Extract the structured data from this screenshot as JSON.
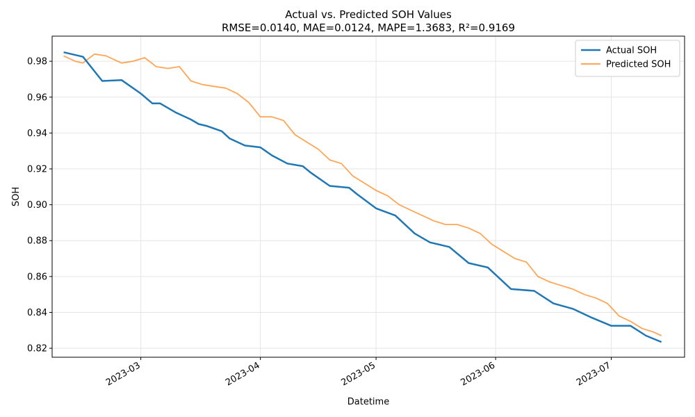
{
  "chart_data": {
    "type": "line",
    "title": "Actual vs. Predicted SOH Values",
    "subtitle": "RMSE=0.0140, MAE=0.0124, MAPE=1.3683, R²=0.9169",
    "xlabel": "Datetime",
    "ylabel": "SOH",
    "x_tick_labels": [
      "2023-03",
      "2023-04",
      "2023-05",
      "2023-06",
      "2023-07"
    ],
    "x_ticks": [
      "2023-03-01",
      "2023-04-01",
      "2023-05-01",
      "2023-06-01",
      "2023-07-01"
    ],
    "y_ticks": [
      0.82,
      0.84,
      0.86,
      0.88,
      0.9,
      0.92,
      0.94,
      0.96,
      0.98
    ],
    "xlim": [
      "2023-02-06",
      "2023-07-20"
    ],
    "ylim": [
      0.815,
      0.994
    ],
    "grid": true,
    "legend_position": "top-right",
    "series": [
      {
        "name": "Actual SOH",
        "color": "#1f77b4",
        "x": [
          "2023-02-09",
          "2023-02-14",
          "2023-02-19",
          "2023-02-24",
          "2023-03-01",
          "2023-03-04",
          "2023-03-06",
          "2023-03-10",
          "2023-03-14",
          "2023-03-16",
          "2023-03-18",
          "2023-03-22",
          "2023-03-24",
          "2023-03-28",
          "2023-04-01",
          "2023-04-04",
          "2023-04-08",
          "2023-04-12",
          "2023-04-14",
          "2023-04-19",
          "2023-04-24",
          "2023-04-26",
          "2023-05-01",
          "2023-05-06",
          "2023-05-11",
          "2023-05-15",
          "2023-05-20",
          "2023-05-25",
          "2023-05-30",
          "2023-06-05",
          "2023-06-11",
          "2023-06-16",
          "2023-06-21",
          "2023-06-26",
          "2023-07-01",
          "2023-07-06",
          "2023-07-10",
          "2023-07-14"
        ],
        "values": [
          0.985,
          0.9825,
          0.969,
          0.9695,
          0.962,
          0.9565,
          0.9565,
          0.9515,
          0.9475,
          0.945,
          0.944,
          0.941,
          0.937,
          0.933,
          0.932,
          0.9275,
          0.923,
          0.9215,
          0.918,
          0.9105,
          0.9095,
          0.906,
          0.898,
          0.894,
          0.884,
          0.879,
          0.8765,
          0.8675,
          0.865,
          0.853,
          0.852,
          0.845,
          0.842,
          0.837,
          0.8325,
          0.8325,
          0.827,
          0.8235
        ]
      },
      {
        "name": "Predicted SOH",
        "color": "#ff7f0e",
        "x": [
          "2023-02-09",
          "2023-02-12",
          "2023-02-14",
          "2023-02-17",
          "2023-02-20",
          "2023-02-24",
          "2023-02-27",
          "2023-03-02",
          "2023-03-05",
          "2023-03-08",
          "2023-03-11",
          "2023-03-14",
          "2023-03-17",
          "2023-03-20",
          "2023-03-23",
          "2023-03-26",
          "2023-03-29",
          "2023-04-01",
          "2023-04-04",
          "2023-04-07",
          "2023-04-10",
          "2023-04-13",
          "2023-04-16",
          "2023-04-19",
          "2023-04-22",
          "2023-04-25",
          "2023-04-28",
          "2023-05-01",
          "2023-05-04",
          "2023-05-07",
          "2023-05-10",
          "2023-05-13",
          "2023-05-16",
          "2023-05-19",
          "2023-05-22",
          "2023-05-25",
          "2023-05-28",
          "2023-05-31",
          "2023-06-03",
          "2023-06-06",
          "2023-06-09",
          "2023-06-12",
          "2023-06-15",
          "2023-06-18",
          "2023-06-21",
          "2023-06-24",
          "2023-06-27",
          "2023-06-30",
          "2023-07-03",
          "2023-07-06",
          "2023-07-09",
          "2023-07-12",
          "2023-07-14"
        ],
        "values": [
          0.983,
          0.98,
          0.979,
          0.984,
          0.983,
          0.979,
          0.98,
          0.982,
          0.977,
          0.976,
          0.977,
          0.969,
          0.967,
          0.966,
          0.965,
          0.962,
          0.957,
          0.949,
          0.949,
          0.947,
          0.939,
          0.935,
          0.931,
          0.925,
          0.923,
          0.916,
          0.912,
          0.908,
          0.905,
          0.9,
          0.897,
          0.894,
          0.891,
          0.889,
          0.889,
          0.887,
          0.884,
          0.878,
          0.874,
          0.87,
          0.868,
          0.86,
          0.857,
          0.855,
          0.853,
          0.85,
          0.848,
          0.845,
          0.838,
          0.835,
          0.831,
          0.829,
          0.827
        ]
      }
    ]
  }
}
